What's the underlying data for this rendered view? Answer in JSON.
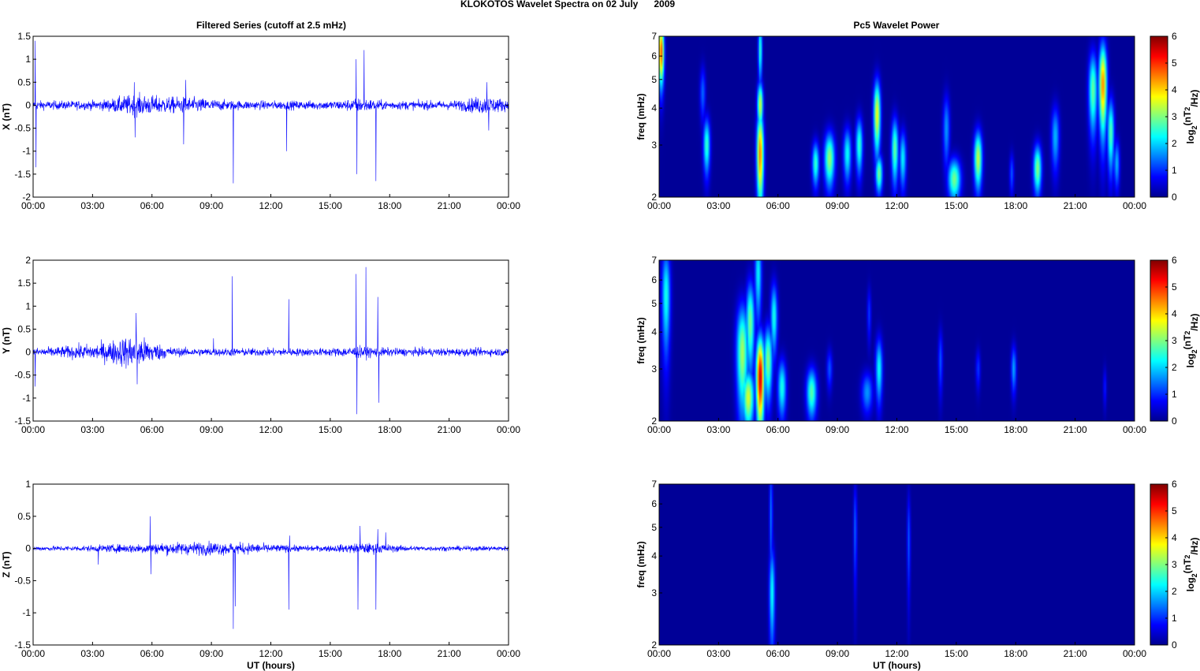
{
  "figure": {
    "suptitle": "KLOKOTOS Wavelet Spectra on 02 July      2009",
    "left_title": "Filtered Series (cutoff at 2.5 mHz)",
    "right_title": "Pc5 Wavelet Power",
    "xlabel": "UT (hours)"
  },
  "colors": {
    "series": "#0000ff",
    "colormap": "jet",
    "background_spec": "#00008f"
  },
  "chart_data": [
    {
      "type": "line",
      "component": "X",
      "ylabel": "X (nT)",
      "xlim": [
        0,
        24
      ],
      "ylim": [
        -2,
        1.5
      ],
      "yticks": [
        -2,
        -1.5,
        -1,
        -0.5,
        0,
        0.5,
        1,
        1.5
      ],
      "xticks": [
        "00:00",
        "03:00",
        "06:00",
        "09:00",
        "12:00",
        "15:00",
        "18:00",
        "21:00",
        "00:00"
      ],
      "noise_amplitude": 0.09,
      "active_bursts": [
        {
          "center": 5.1,
          "width": 1.2,
          "gain": 2.2
        },
        {
          "center": 7.6,
          "width": 1.6,
          "gain": 1.8
        },
        {
          "center": 16.5,
          "width": 0.8,
          "gain": 1.6
        },
        {
          "center": 22.8,
          "width": 1.0,
          "gain": 2.0
        }
      ],
      "spikes": [
        {
          "t": 0.1,
          "v": 1.4
        },
        {
          "t": 0.15,
          "v": -1.35
        },
        {
          "t": 5.1,
          "v": 0.5
        },
        {
          "t": 5.15,
          "v": -0.7
        },
        {
          "t": 7.6,
          "v": -0.85
        },
        {
          "t": 7.7,
          "v": 0.55
        },
        {
          "t": 10.1,
          "v": -1.7
        },
        {
          "t": 12.8,
          "v": -1.0
        },
        {
          "t": 16.3,
          "v": 1.0
        },
        {
          "t": 16.35,
          "v": -1.5
        },
        {
          "t": 16.7,
          "v": 1.2
        },
        {
          "t": 17.3,
          "v": -1.65
        },
        {
          "t": 22.9,
          "v": 0.5
        },
        {
          "t": 23.0,
          "v": -0.55
        }
      ]
    },
    {
      "type": "line",
      "component": "Y",
      "ylabel": "Y (nT)",
      "xlim": [
        0,
        24
      ],
      "ylim": [
        -1.5,
        2
      ],
      "yticks": [
        -1.5,
        -1,
        -0.5,
        0,
        0.5,
        1,
        1.5,
        2
      ],
      "xticks": [
        "00:00",
        "03:00",
        "06:00",
        "09:00",
        "12:00",
        "15:00",
        "18:00",
        "21:00",
        "00:00"
      ],
      "noise_amplitude": 0.08,
      "active_bursts": [
        {
          "center": 3.2,
          "width": 2.0,
          "gain": 2.0
        },
        {
          "center": 5.3,
          "width": 1.2,
          "gain": 3.0
        },
        {
          "center": 16.5,
          "width": 1.0,
          "gain": 1.5
        }
      ],
      "spikes": [
        {
          "t": 0.1,
          "v": -0.75
        },
        {
          "t": 5.2,
          "v": 0.85
        },
        {
          "t": 5.25,
          "v": -0.7
        },
        {
          "t": 9.1,
          "v": 0.3
        },
        {
          "t": 10.05,
          "v": 1.65
        },
        {
          "t": 12.9,
          "v": 1.15
        },
        {
          "t": 16.3,
          "v": 1.7
        },
        {
          "t": 16.35,
          "v": -1.35
        },
        {
          "t": 16.8,
          "v": 1.85
        },
        {
          "t": 17.4,
          "v": 1.2
        },
        {
          "t": 17.45,
          "v": -1.1
        }
      ]
    },
    {
      "type": "line",
      "component": "Z",
      "ylabel": "Z (nT)",
      "xlim": [
        0,
        24
      ],
      "ylim": [
        -1.5,
        1
      ],
      "yticks": [
        -1.5,
        -1,
        -0.5,
        0,
        0.5,
        1
      ],
      "xticks": [
        "00:00",
        "03:00",
        "06:00",
        "09:00",
        "12:00",
        "15:00",
        "18:00",
        "21:00",
        "00:00"
      ],
      "noise_amplitude": 0.035,
      "active_bursts": [
        {
          "center": 6.5,
          "width": 3.0,
          "gain": 2.2
        },
        {
          "center": 10.5,
          "width": 2.5,
          "gain": 2.0
        },
        {
          "center": 16.8,
          "width": 1.5,
          "gain": 2.2
        }
      ],
      "spikes": [
        {
          "t": 3.3,
          "v": -0.25
        },
        {
          "t": 5.9,
          "v": 0.5
        },
        {
          "t": 5.95,
          "v": -0.4
        },
        {
          "t": 10.1,
          "v": -1.25
        },
        {
          "t": 10.2,
          "v": -0.9
        },
        {
          "t": 12.9,
          "v": -0.95
        },
        {
          "t": 12.95,
          "v": 0.2
        },
        {
          "t": 16.4,
          "v": -0.95
        },
        {
          "t": 16.5,
          "v": 0.35
        },
        {
          "t": 17.3,
          "v": -0.95
        },
        {
          "t": 17.4,
          "v": 0.3
        },
        {
          "t": 17.8,
          "v": 0.25
        }
      ]
    },
    {
      "type": "heatmap",
      "component": "X",
      "ylabel": "freq (mHz)",
      "colorbar_label": "log2(nT2/Hz)",
      "yscale": "log",
      "ylim": [
        2,
        7
      ],
      "yticks": [
        2,
        3,
        4,
        5,
        6,
        7
      ],
      "xlim": [
        0,
        24
      ],
      "clim": [
        0,
        6
      ],
      "cticks": [
        0,
        1,
        2,
        3,
        4,
        5,
        6
      ],
      "xticks": [
        "00:00",
        "03:00",
        "06:00",
        "09:00",
        "12:00",
        "15:00",
        "18:00",
        "21:00",
        "00:00"
      ],
      "blobs": [
        {
          "t": 0.1,
          "f": 6.2,
          "dt": 0.1,
          "df": 0.35,
          "p": 5.0
        },
        {
          "t": 2.2,
          "f": 4.5,
          "dt": 0.1,
          "df": 0.3,
          "p": 1.3
        },
        {
          "t": 2.4,
          "f": 3.0,
          "dt": 0.12,
          "df": 0.3,
          "p": 2.6
        },
        {
          "t": 5.1,
          "f": 2.8,
          "dt": 0.12,
          "df": 0.5,
          "p": 4.7
        },
        {
          "t": 5.1,
          "f": 4.1,
          "dt": 0.1,
          "df": 0.25,
          "p": 3.6
        },
        {
          "t": 5.1,
          "f": 6.3,
          "dt": 0.07,
          "df": 0.35,
          "p": 2.6
        },
        {
          "t": 7.9,
          "f": 2.6,
          "dt": 0.12,
          "df": 0.22,
          "p": 2.6
        },
        {
          "t": 8.6,
          "f": 2.7,
          "dt": 0.18,
          "df": 0.28,
          "p": 3.2
        },
        {
          "t": 9.5,
          "f": 2.8,
          "dt": 0.14,
          "df": 0.28,
          "p": 2.3
        },
        {
          "t": 10.1,
          "f": 3.0,
          "dt": 0.12,
          "df": 0.3,
          "p": 2.6
        },
        {
          "t": 11.0,
          "f": 3.8,
          "dt": 0.12,
          "df": 0.4,
          "p": 3.8
        },
        {
          "t": 11.1,
          "f": 2.4,
          "dt": 0.12,
          "df": 0.18,
          "p": 3.0
        },
        {
          "t": 11.9,
          "f": 2.9,
          "dt": 0.12,
          "df": 0.35,
          "p": 2.9
        },
        {
          "t": 12.3,
          "f": 2.7,
          "dt": 0.12,
          "df": 0.3,
          "p": 2.2
        },
        {
          "t": 14.5,
          "f": 3.4,
          "dt": 0.12,
          "df": 0.4,
          "p": 1.6
        },
        {
          "t": 14.9,
          "f": 2.3,
          "dt": 0.22,
          "df": 0.2,
          "p": 3.0
        },
        {
          "t": 16.1,
          "f": 2.7,
          "dt": 0.14,
          "df": 0.3,
          "p": 3.5
        },
        {
          "t": 17.8,
          "f": 2.4,
          "dt": 0.08,
          "df": 0.2,
          "p": 1.2
        },
        {
          "t": 19.1,
          "f": 2.5,
          "dt": 0.14,
          "df": 0.25,
          "p": 3.1
        },
        {
          "t": 20.0,
          "f": 3.2,
          "dt": 0.14,
          "df": 0.35,
          "p": 1.8
        },
        {
          "t": 21.9,
          "f": 4.6,
          "dt": 0.15,
          "df": 0.45,
          "p": 2.9
        },
        {
          "t": 22.4,
          "f": 4.8,
          "dt": 0.14,
          "df": 0.5,
          "p": 4.6
        },
        {
          "t": 22.8,
          "f": 3.3,
          "dt": 0.12,
          "df": 0.4,
          "p": 2.8
        },
        {
          "t": 23.1,
          "f": 2.6,
          "dt": 0.1,
          "df": 0.25,
          "p": 1.8
        }
      ]
    },
    {
      "type": "heatmap",
      "component": "Y",
      "ylabel": "freq (mHz)",
      "colorbar_label": "log2(nT2/Hz)",
      "yscale": "log",
      "ylim": [
        2,
        7
      ],
      "yticks": [
        2,
        3,
        4,
        5,
        6,
        7
      ],
      "xlim": [
        0,
        24
      ],
      "clim": [
        0,
        6
      ],
      "cticks": [
        0,
        1,
        2,
        3,
        4,
        5,
        6
      ],
      "xticks": [
        "00:00",
        "03:00",
        "06:00",
        "09:00",
        "12:00",
        "15:00",
        "18:00",
        "21:00",
        "00:00"
      ],
      "blobs": [
        {
          "t": 0.35,
          "f": 5.3,
          "dt": 0.15,
          "df": 0.6,
          "p": 2.4
        },
        {
          "t": 4.2,
          "f": 3.4,
          "dt": 0.2,
          "df": 0.6,
          "p": 3.3
        },
        {
          "t": 4.5,
          "f": 2.4,
          "dt": 0.2,
          "df": 0.3,
          "p": 3.6
        },
        {
          "t": 5.1,
          "f": 2.8,
          "dt": 0.14,
          "df": 0.5,
          "p": 5.8
        },
        {
          "t": 4.6,
          "f": 4.3,
          "dt": 0.15,
          "df": 0.5,
          "p": 3.0
        },
        {
          "t": 5.0,
          "f": 6.3,
          "dt": 0.12,
          "df": 0.5,
          "p": 2.2
        },
        {
          "t": 5.5,
          "f": 3.2,
          "dt": 0.15,
          "df": 0.4,
          "p": 3.1
        },
        {
          "t": 5.8,
          "f": 4.5,
          "dt": 0.12,
          "df": 0.4,
          "p": 2.4
        },
        {
          "t": 6.2,
          "f": 2.6,
          "dt": 0.15,
          "df": 0.3,
          "p": 2.4
        },
        {
          "t": 7.7,
          "f": 2.5,
          "dt": 0.18,
          "df": 0.25,
          "p": 2.8
        },
        {
          "t": 8.6,
          "f": 3.0,
          "dt": 0.1,
          "df": 0.2,
          "p": 1.2
        },
        {
          "t": 10.5,
          "f": 2.5,
          "dt": 0.2,
          "df": 0.2,
          "p": 1.6
        },
        {
          "t": 11.1,
          "f": 3.0,
          "dt": 0.12,
          "df": 0.35,
          "p": 2.3
        },
        {
          "t": 10.6,
          "f": 4.6,
          "dt": 0.07,
          "df": 0.3,
          "p": 1.0
        },
        {
          "t": 14.2,
          "f": 3.2,
          "dt": 0.08,
          "df": 0.35,
          "p": 1.2
        },
        {
          "t": 16.1,
          "f": 3.0,
          "dt": 0.08,
          "df": 0.2,
          "p": 1.0
        },
        {
          "t": 17.9,
          "f": 3.0,
          "dt": 0.09,
          "df": 0.25,
          "p": 1.7
        },
        {
          "t": 22.5,
          "f": 2.6,
          "dt": 0.06,
          "df": 0.2,
          "p": 0.8
        }
      ]
    },
    {
      "type": "heatmap",
      "component": "Z",
      "ylabel": "freq (mHz)",
      "colorbar_label": "log2(nT2/Hz)",
      "yscale": "log",
      "ylim": [
        2,
        7
      ],
      "yticks": [
        2,
        3,
        4,
        5,
        6,
        7
      ],
      "xlim": [
        0,
        24
      ],
      "clim": [
        0,
        6
      ],
      "cticks": [
        0,
        1,
        2,
        3,
        4,
        5,
        6
      ],
      "xticks": [
        "00:00",
        "03:00",
        "06:00",
        "09:00",
        "12:00",
        "15:00",
        "18:00",
        "21:00",
        "00:00"
      ],
      "blobs": [
        {
          "t": 5.7,
          "f": 3.0,
          "dt": 0.1,
          "df": 0.55,
          "p": 2.3
        },
        {
          "t": 5.65,
          "f": 5.5,
          "dt": 0.06,
          "df": 0.7,
          "p": 1.4
        },
        {
          "t": 9.9,
          "f": 4.9,
          "dt": 0.06,
          "df": 0.6,
          "p": 1.3
        },
        {
          "t": 12.6,
          "f": 4.5,
          "dt": 0.06,
          "df": 0.6,
          "p": 1.2
        }
      ]
    }
  ]
}
